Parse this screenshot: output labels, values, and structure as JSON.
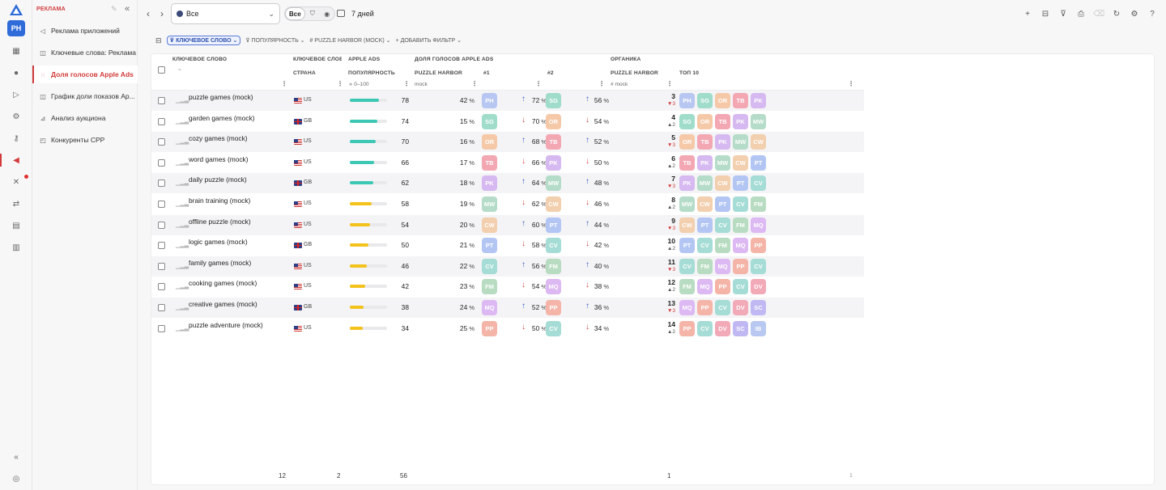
{
  "rail": {
    "avatar": "PH",
    "icons": [
      "apps-icon",
      "apple-icon",
      "play-icon",
      "settings-icon",
      "key-icon",
      "megaphone-icon",
      "tools-icon",
      "shuffle-icon",
      "chart-icon",
      "table-icon"
    ],
    "collapse_icon": "double-chevron-left-icon",
    "account_icon": "user-circle-icon"
  },
  "sidebar": {
    "section_title": "РЕКЛАМА",
    "items": [
      {
        "label": "Реклама приложений",
        "icon": "megaphone-icon",
        "active": false
      },
      {
        "label": "Ключевые слова: Реклама",
        "icon": "tag-icon",
        "active": false
      },
      {
        "label": "Доля голосов Apple Ads",
        "icon": "circle-icon",
        "active": true
      },
      {
        "label": "График доли показов Ap...",
        "icon": "chart-icon",
        "active": false
      },
      {
        "label": "Анализ аукциона",
        "icon": "gavel-icon",
        "active": false
      },
      {
        "label": "Конкуренты CPP",
        "icon": "copy-icon",
        "active": false
      }
    ]
  },
  "topbar": {
    "app_select": "Все",
    "segments": [
      "Все",
      "shield-icon",
      "person-icon"
    ],
    "period": "7 дней",
    "tools": [
      "plus-icon",
      "device-icon",
      "filter-icon",
      "export-icon",
      "trash-icon",
      "refresh-icon",
      "settings-icon",
      "help-icon"
    ]
  },
  "filters": {
    "keyword": "КЛЮЧЕВОЕ СЛОВО",
    "popularity": "ПОПУЛЯРНОСТЬ",
    "app": "PUZZLE HARBOR (MOCK)",
    "add": "ДОБАВИТЬ ФИЛЬТР"
  },
  "table": {
    "headers": {
      "keyword": "КЛЮЧЕВОЕ СЛОВО",
      "keyword_group": "КЛЮЧЕВОЕ СЛОВО",
      "apple_ads": "APPLE ADS",
      "share_group": "ДОЛЯ ГОЛОСОВ APPLE ADS",
      "organic": "ОРГАНИКА",
      "country": "СТРАНА",
      "popularity": "ПОПУЛЯРНОСТЬ",
      "puzzle_harbor": "PUZZLE HARBOR",
      "first": "#1",
      "second": "#2",
      "puzzle_harbor_organic": "PUZZLE HARBOR",
      "top10": "ТОП 10"
    },
    "subfilters": {
      "keyword": "~",
      "popularity_range": "0–100",
      "share_filter": "mock",
      "organic_filter": "mock"
    },
    "rows": [
      {
        "keyword": "puzzle games (mock)",
        "flag": "us",
        "country": "US",
        "popularity": 78,
        "share": 42,
        "first": {
          "abbr": "PH",
          "color": "#b8c7f2"
        },
        "first_share": 72,
        "first_dir": "up",
        "second": {
          "abbr": "SG",
          "color": "#9fdcc9"
        },
        "second_share": 56,
        "second_dir": "up",
        "rank": 3,
        "rank_change": 3,
        "rank_dir": "dn",
        "top10": [
          "PH",
          "SG",
          "OR",
          "TB",
          "PK"
        ]
      },
      {
        "keyword": "garden games (mock)",
        "flag": "gb",
        "country": "GB",
        "popularity": 74,
        "share": 15,
        "first": {
          "abbr": "SG",
          "color": "#9fdcc9"
        },
        "first_share": 70,
        "first_dir": "dn",
        "second": {
          "abbr": "OR",
          "color": "#f5c9a8"
        },
        "second_share": 54,
        "second_dir": "dn",
        "rank": 4,
        "rank_change": 2,
        "rank_dir": "up",
        "top10": [
          "SG",
          "OR",
          "TB",
          "PK",
          "MW"
        ]
      },
      {
        "keyword": "cozy games (mock)",
        "flag": "us",
        "country": "US",
        "popularity": 70,
        "share": 16,
        "first": {
          "abbr": "OR",
          "color": "#f5c9a8"
        },
        "first_share": 68,
        "first_dir": "up",
        "second": {
          "abbr": "TB",
          "color": "#f3a7b3"
        },
        "second_share": 52,
        "second_dir": "up",
        "rank": 5,
        "rank_change": 3,
        "rank_dir": "dn",
        "top10": [
          "OR",
          "TB",
          "PK",
          "MW",
          "CW"
        ]
      },
      {
        "keyword": "word games (mock)",
        "flag": "us",
        "country": "US",
        "popularity": 66,
        "share": 17,
        "first": {
          "abbr": "TB",
          "color": "#f3a7b3"
        },
        "first_share": 66,
        "first_dir": "dn",
        "second": {
          "abbr": "PK",
          "color": "#d6b9f0"
        },
        "second_share": 50,
        "second_dir": "dn",
        "rank": 6,
        "rank_change": 2,
        "rank_dir": "up",
        "top10": [
          "TB",
          "PK",
          "MW",
          "CW",
          "PT"
        ]
      },
      {
        "keyword": "daily puzzle (mock)",
        "flag": "gb",
        "country": "GB",
        "popularity": 62,
        "share": 18,
        "first": {
          "abbr": "PK",
          "color": "#d6b9f0"
        },
        "first_share": 64,
        "first_dir": "up",
        "second": {
          "abbr": "MW",
          "color": "#b5dcc8"
        },
        "second_share": 48,
        "second_dir": "up",
        "rank": 7,
        "rank_change": 3,
        "rank_dir": "dn",
        "top10": [
          "PK",
          "MW",
          "CW",
          "PT",
          "CV"
        ]
      },
      {
        "keyword": "brain training (mock)",
        "flag": "us",
        "country": "US",
        "popularity": 58,
        "share": 19,
        "first": {
          "abbr": "MW",
          "color": "#b5dcc8"
        },
        "first_share": 62,
        "first_dir": "dn",
        "second": {
          "abbr": "CW",
          "color": "#f2cfae"
        },
        "second_share": 46,
        "second_dir": "dn",
        "rank": 8,
        "rank_change": 2,
        "rank_dir": "up",
        "top10": [
          "MW",
          "CW",
          "PT",
          "CV",
          "FM"
        ]
      },
      {
        "keyword": "offline puzzle (mock)",
        "flag": "us",
        "country": "US",
        "popularity": 54,
        "share": 20,
        "first": {
          "abbr": "CW",
          "color": "#f2cfae"
        },
        "first_share": 60,
        "first_dir": "up",
        "second": {
          "abbr": "PT",
          "color": "#b3c6f3"
        },
        "second_share": 44,
        "second_dir": "up",
        "rank": 9,
        "rank_change": 3,
        "rank_dir": "dn",
        "top10": [
          "CW",
          "PT",
          "CV",
          "FM",
          "MQ"
        ]
      },
      {
        "keyword": "logic games (mock)",
        "flag": "gb",
        "country": "GB",
        "popularity": 50,
        "share": 21,
        "first": {
          "abbr": "PT",
          "color": "#b3c6f3"
        },
        "first_share": 58,
        "first_dir": "dn",
        "second": {
          "abbr": "CV",
          "color": "#a5dcd5"
        },
        "second_share": 42,
        "second_dir": "dn",
        "rank": 10,
        "rank_change": 2,
        "rank_dir": "up",
        "top10": [
          "PT",
          "CV",
          "FM",
          "MQ",
          "PP"
        ]
      },
      {
        "keyword": "family games (mock)",
        "flag": "us",
        "country": "US",
        "popularity": 46,
        "share": 22,
        "first": {
          "abbr": "CV",
          "color": "#a5dcd5"
        },
        "first_share": 56,
        "first_dir": "up",
        "second": {
          "abbr": "FM",
          "color": "#b8dcc1"
        },
        "second_share": 40,
        "second_dir": "up",
        "rank": 11,
        "rank_change": 3,
        "rank_dir": "dn",
        "top10": [
          "CV",
          "FM",
          "MQ",
          "PP",
          "CV"
        ]
      },
      {
        "keyword": "cooking games (mock)",
        "flag": "us",
        "country": "US",
        "popularity": 42,
        "share": 23,
        "first": {
          "abbr": "FM",
          "color": "#b8dcc1"
        },
        "first_share": 54,
        "first_dir": "dn",
        "second": {
          "abbr": "MQ",
          "color": "#dcb9f2"
        },
        "second_share": 38,
        "second_dir": "dn",
        "rank": 12,
        "rank_change": 2,
        "rank_dir": "up",
        "top10": [
          "FM",
          "MQ",
          "PP",
          "CV",
          "DV"
        ]
      },
      {
        "keyword": "creative games (mock)",
        "flag": "gb",
        "country": "GB",
        "popularity": 38,
        "share": 24,
        "first": {
          "abbr": "MQ",
          "color": "#dcb9f2"
        },
        "first_share": 52,
        "first_dir": "up",
        "second": {
          "abbr": "PP",
          "color": "#f4b5a8"
        },
        "second_share": 36,
        "second_dir": "up",
        "rank": 13,
        "rank_change": 3,
        "rank_dir": "dn",
        "top10": [
          "MQ",
          "PP",
          "CV",
          "DV",
          "SC"
        ]
      },
      {
        "keyword": "puzzle adventure (mock)",
        "flag": "us",
        "country": "US",
        "popularity": 34,
        "share": 25,
        "first": {
          "abbr": "PP",
          "color": "#f4b5a8"
        },
        "first_share": 50,
        "first_dir": "dn",
        "second": {
          "abbr": "CV",
          "color": "#a5dcd5"
        },
        "second_share": 34,
        "second_dir": "dn",
        "rank": 14,
        "rank_change": 2,
        "rank_dir": "up",
        "top10": [
          "PP",
          "CV",
          "DV",
          "SC",
          "IB"
        ]
      }
    ],
    "footer": {
      "keywords": "12",
      "countries": "2",
      "popularity_avg": "56",
      "organic_count": "1",
      "top10_count": "1"
    },
    "colors": {
      "popularity_high": "#3cc8b4",
      "popularity_low": "#f3c21b",
      "up": "#2c55c2",
      "down": "#d23b3b",
      "accent": "#d23b3b"
    },
    "app_colors": {
      "PH": "#b8c7f2",
      "SG": "#9fdcc9",
      "OR": "#f5c9a8",
      "TB": "#f3a7b3",
      "PK": "#d6b9f0",
      "MW": "#b5dcc8",
      "CW": "#f2cfae",
      "PT": "#b3c6f3",
      "CV": "#a5dcd5",
      "FM": "#b8dcc1",
      "MQ": "#dcb9f2",
      "PP": "#f4b5a8",
      "DV": "#f2a9b8",
      "SC": "#c0b8f2",
      "IB": "#b8c8f0"
    }
  }
}
